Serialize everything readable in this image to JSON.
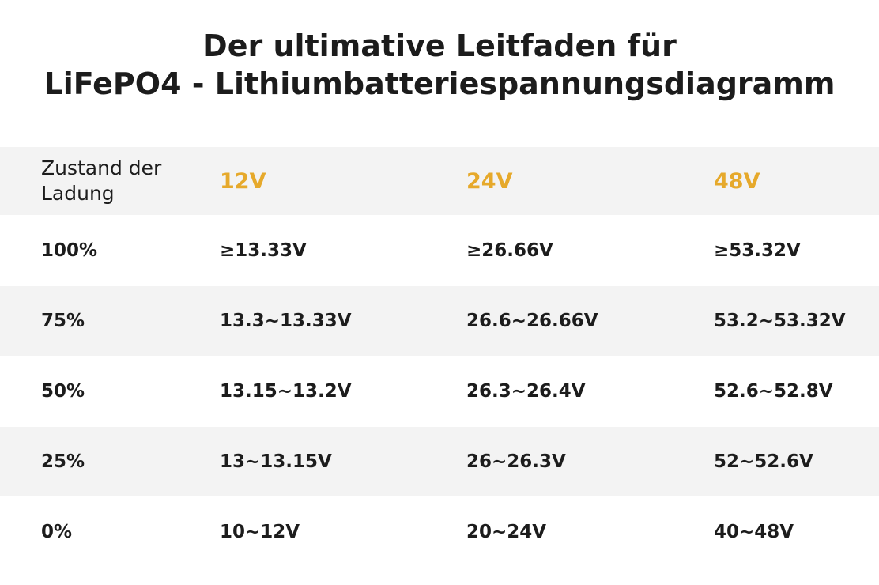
{
  "header": {
    "title_lines": [
      "Der ultimative Leitfaden für",
      "LiFePO4 - Lithiumbatteriespannungsdiagramm"
    ]
  },
  "table": {
    "columns": [
      "Zustand der Ladung",
      "12V",
      "24V",
      "48V"
    ],
    "rows": [
      [
        "100%",
        "≥13.33V",
        "≥26.66V",
        "≥53.32V"
      ],
      [
        "75%",
        "13.3~13.33V",
        "26.6~26.66V",
        "53.2~53.32V"
      ],
      [
        "50%",
        "13.15~13.2V",
        "26.3~26.4V",
        "52.6~52.8V"
      ],
      [
        "25%",
        "13~13.15V",
        "26~26.3V",
        "52~52.6V"
      ],
      [
        "0%",
        "10~12V",
        "20~24V",
        "40~48V"
      ]
    ]
  }
}
